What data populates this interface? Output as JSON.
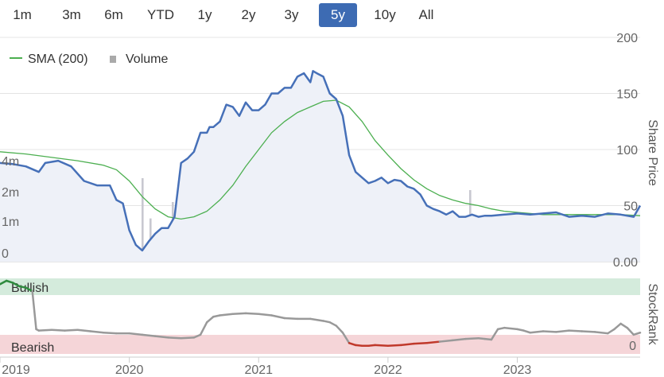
{
  "range_selector": {
    "buttons": [
      "1m",
      "3m",
      "6m",
      "YTD",
      "1y",
      "2y",
      "3y",
      "5y",
      "10y",
      "All"
    ],
    "active": "5y"
  },
  "legend": {
    "sma_label": "SMA (200)",
    "volume_label": "Volume"
  },
  "colors": {
    "price": "#4670b8",
    "sma": "#4caf50",
    "volume": "#c8c8d0",
    "rank": "#999999",
    "rank_low": "#c0392b",
    "rank_high": "#2e8b3e",
    "bullish_band": "#d4ebdc",
    "bearish_band": "#f5d5d8",
    "active_button": "#3d6bb3"
  },
  "chart_data": [
    {
      "type": "line",
      "ylabel": "Share Price",
      "ylim": [
        0,
        200
      ],
      "y_ticks": [
        "200",
        "150",
        "100",
        "50",
        "0.00"
      ],
      "volume_ticks": [
        "4m",
        "2m",
        "1m",
        "0"
      ],
      "x_ticks": [
        "2019",
        "2020",
        "2021",
        "2022",
        "2023"
      ],
      "x_range": [
        2019.0,
        2023.95
      ],
      "grid": true,
      "legend_position": "top-left",
      "series": [
        {
          "name": "",
          "kind": "price",
          "x": [
            2019.0,
            2019.1,
            2019.2,
            2019.3,
            2019.35,
            2019.45,
            2019.55,
            2019.65,
            2019.75,
            2019.85,
            2019.9,
            2019.95,
            2020.0,
            2020.05,
            2020.1,
            2020.15,
            2020.2,
            2020.25,
            2020.3,
            2020.35,
            2020.4,
            2020.45,
            2020.5,
            2020.55,
            2020.6,
            2020.62,
            2020.65,
            2020.7,
            2020.75,
            2020.8,
            2020.85,
            2020.9,
            2020.95,
            2021.0,
            2021.05,
            2021.1,
            2021.15,
            2021.2,
            2021.25,
            2021.3,
            2021.35,
            2021.4,
            2021.42,
            2021.45,
            2021.5,
            2021.55,
            2021.6,
            2021.65,
            2021.7,
            2021.75,
            2021.8,
            2021.85,
            2021.9,
            2021.95,
            2022.0,
            2022.05,
            2022.1,
            2022.15,
            2022.2,
            2022.25,
            2022.3,
            2022.35,
            2022.4,
            2022.45,
            2022.5,
            2022.55,
            2022.6,
            2022.65,
            2022.7,
            2022.75,
            2022.8,
            2022.9,
            2023.0,
            2023.1,
            2023.2,
            2023.3,
            2023.4,
            2023.5,
            2023.6,
            2023.7,
            2023.8,
            2023.9,
            2023.95
          ],
          "values": [
            88,
            87,
            85,
            80,
            88,
            90,
            85,
            72,
            68,
            68,
            55,
            52,
            28,
            15,
            10,
            18,
            25,
            30,
            30,
            40,
            88,
            92,
            98,
            115,
            115,
            120,
            120,
            125,
            140,
            138,
            130,
            142,
            135,
            135,
            140,
            150,
            150,
            155,
            155,
            165,
            168,
            160,
            170,
            168,
            165,
            150,
            145,
            130,
            95,
            80,
            75,
            70,
            72,
            75,
            70,
            73,
            72,
            67,
            65,
            60,
            50,
            47,
            45,
            42,
            45,
            40,
            40,
            42,
            40,
            41,
            41,
            42,
            43,
            42,
            43,
            44,
            40,
            41,
            40,
            43,
            42,
            40,
            50
          ]
        },
        {
          "name": "SMA (200)",
          "kind": "sma",
          "x": [
            2019.0,
            2019.2,
            2019.4,
            2019.6,
            2019.8,
            2019.9,
            2020.0,
            2020.1,
            2020.2,
            2020.3,
            2020.4,
            2020.5,
            2020.6,
            2020.7,
            2020.8,
            2020.9,
            2021.0,
            2021.1,
            2021.2,
            2021.3,
            2021.4,
            2021.5,
            2021.6,
            2021.7,
            2021.8,
            2021.9,
            2022.0,
            2022.1,
            2022.2,
            2022.3,
            2022.4,
            2022.5,
            2022.6,
            2022.7,
            2022.8,
            2022.9,
            2023.0,
            2023.2,
            2023.4,
            2023.6,
            2023.8,
            2023.95
          ],
          "values": [
            98,
            96,
            93,
            90,
            86,
            82,
            72,
            58,
            47,
            40,
            38,
            40,
            45,
            55,
            68,
            85,
            100,
            115,
            125,
            133,
            138,
            143,
            144,
            138,
            125,
            108,
            95,
            83,
            73,
            65,
            59,
            55,
            52,
            50,
            47,
            45,
            44,
            42,
            42,
            42,
            42,
            41
          ]
        }
      ]
    },
    {
      "type": "line",
      "ylabel": "StockRank",
      "ylim": [
        0,
        100
      ],
      "y_ticks": [
        "0"
      ],
      "bands": [
        "Bullish",
        "Bearish"
      ],
      "x_range": [
        2019.0,
        2023.95
      ],
      "series": [
        {
          "name": "",
          "x": [
            2019.0,
            2019.05,
            2019.1,
            2019.15,
            2019.2,
            2019.25,
            2019.28,
            2019.3,
            2019.4,
            2019.5,
            2019.6,
            2019.7,
            2019.8,
            2019.9,
            2020.0,
            2020.1,
            2020.2,
            2020.3,
            2020.4,
            2020.5,
            2020.55,
            2020.6,
            2020.65,
            2020.7,
            2020.8,
            2020.9,
            2021.0,
            2021.1,
            2021.2,
            2021.3,
            2021.4,
            2021.5,
            2021.55,
            2021.6,
            2021.65,
            2021.7,
            2021.75,
            2021.8,
            2021.85,
            2021.9,
            2022.0,
            2022.1,
            2022.2,
            2022.3,
            2022.4,
            2022.5,
            2022.6,
            2022.7,
            2022.75,
            2022.8,
            2022.85,
            2022.9,
            2023.0,
            2023.05,
            2023.1,
            2023.2,
            2023.3,
            2023.4,
            2023.5,
            2023.6,
            2023.7,
            2023.75,
            2023.8,
            2023.85,
            2023.9,
            2023.95
          ],
          "values": [
            95,
            100,
            97,
            92,
            90,
            85,
            30,
            28,
            29,
            28,
            29,
            27,
            25,
            24,
            24,
            22,
            20,
            18,
            17,
            18,
            22,
            40,
            48,
            50,
            52,
            53,
            52,
            50,
            46,
            45,
            45,
            42,
            40,
            35,
            25,
            10,
            7,
            6,
            6,
            7,
            6,
            7,
            9,
            10,
            12,
            14,
            16,
            17,
            16,
            15,
            30,
            32,
            30,
            28,
            25,
            27,
            26,
            28,
            27,
            26,
            24,
            30,
            38,
            32,
            22,
            25
          ]
        }
      ]
    }
  ]
}
